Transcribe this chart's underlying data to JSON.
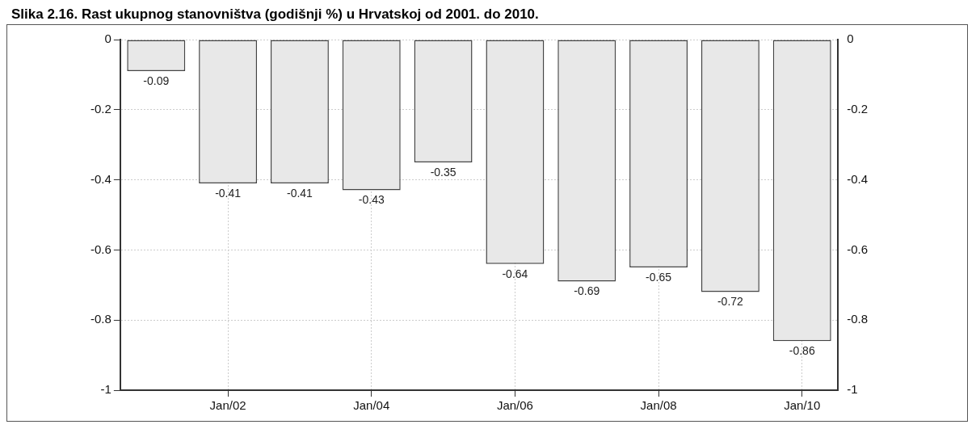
{
  "chart_data": {
    "type": "bar",
    "title": "Slika 2.16.   Rast ukupnog stanovništva (godišnji %) u Hrvatskoj od 2001. do 2010.",
    "categories": [
      null,
      "Jan/02",
      null,
      "Jan/04",
      null,
      "Jan/06",
      null,
      "Jan/08",
      null,
      "Jan/10"
    ],
    "values": [
      -0.09,
      -0.41,
      -0.41,
      -0.43,
      -0.35,
      -0.64,
      -0.69,
      -0.65,
      -0.72,
      -0.86
    ],
    "color": "#e8e8e8",
    "ylim": [
      -1,
      0
    ],
    "yticks": [
      0,
      -0.2,
      -0.4,
      -0.6,
      -0.8,
      -1
    ],
    "y2lim": [
      -1,
      0
    ],
    "y2ticks": [
      0,
      -0.2,
      -0.4,
      -0.6,
      -0.8,
      -1
    ],
    "data_labels": true,
    "grid": true,
    "legend": false
  }
}
